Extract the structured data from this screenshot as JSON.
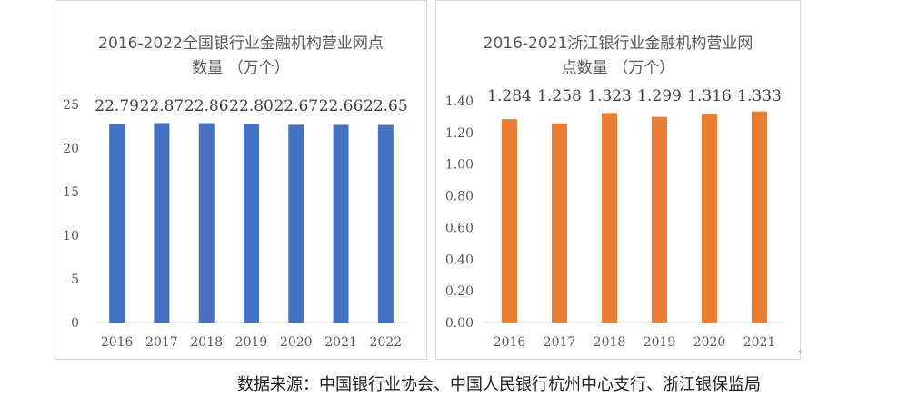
{
  "chart_data": [
    {
      "type": "bar",
      "title": "2016-2022全国银行业金融机构营业网点数量（万个）",
      "title_lines": [
        "2016-2022全国银行业金融机构营业网点",
        "数量 （万个）"
      ],
      "categories": [
        "2016",
        "2017",
        "2018",
        "2019",
        "2020",
        "2021",
        "2022"
      ],
      "values": [
        22.79,
        22.87,
        22.86,
        22.8,
        22.67,
        22.66,
        22.65
      ],
      "value_labels": [
        "22.79",
        "22.87",
        "22.86",
        "22.80",
        "22.67",
        "22.66",
        "22.65"
      ],
      "ylim": [
        0,
        25
      ],
      "yticks": [
        "0",
        "5",
        "10",
        "15",
        "20",
        "25"
      ],
      "xlabel": "",
      "ylabel": "",
      "color": "#4472c4",
      "grid": false,
      "legend": "none"
    },
    {
      "type": "bar",
      "title": "2016-2021浙江银行业金融机构营业网点数量（万个）",
      "title_lines": [
        "2016-2021浙江银行业金融机构营业网",
        "点数量 （万个）"
      ],
      "categories": [
        "2016",
        "2017",
        "2018",
        "2019",
        "2020",
        "2021"
      ],
      "values": [
        1.284,
        1.258,
        1.323,
        1.299,
        1.316,
        1.333
      ],
      "value_labels": [
        "1.284",
        "1.258",
        "1.323",
        "1.299",
        "1.316",
        "1.333"
      ],
      "ylim": [
        0,
        1.4
      ],
      "yticks": [
        "0.00",
        "0.20",
        "0.40",
        "0.60",
        "0.80",
        "1.00",
        "1.20",
        "1.40"
      ],
      "xlabel": "",
      "ylabel": "",
      "color": "#ed7d31",
      "grid": false,
      "legend": "none"
    }
  ],
  "source_note": "数据来源：中国银行业协会、中国人民银行杭州中心支行、浙江银保监局"
}
